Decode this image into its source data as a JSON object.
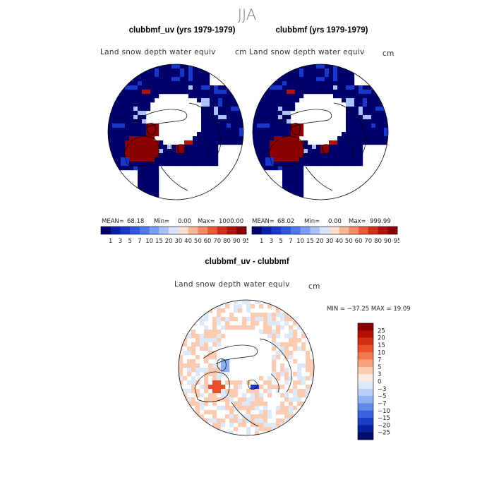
{
  "figure": {
    "season": "JJA"
  },
  "panels": [
    {
      "title": "clubbmf_uv (yrs 1979-1979)",
      "field": "Land snow depth water equiv",
      "units": "cm",
      "stats": {
        "mean_label": "MEAN=",
        "mean": "68.18",
        "min_label": "Min=",
        "min": "0.00",
        "max_label": "Max=",
        "max": "1000.00"
      }
    },
    {
      "title": "clubbmf (yrs 1979-1979)",
      "field": "Land snow depth water equiv",
      "units": "cm",
      "stats": {
        "mean_label": "MEAN=",
        "mean": "68.02",
        "min_label": "Min=",
        "min": "0.00",
        "max_label": "Max=",
        "max": "999.99"
      }
    },
    {
      "title": "clubbmf_uv - clubbmf",
      "field": "Land snow depth water equiv",
      "units": "cm",
      "stats": {
        "text": "MIN = −37.25  MAX =   19.09"
      }
    }
  ],
  "colorbar_top": {
    "labels": [
      "1",
      "3",
      "5",
      "7",
      "10",
      "15",
      "20",
      "30",
      "40",
      "50",
      "60",
      "70",
      "80",
      "90",
      "95"
    ],
    "colors": [
      "#00006a",
      "#0a1ea8",
      "#1838cc",
      "#2f55de",
      "#4f78ec",
      "#7a9cf4",
      "#a9c1f8",
      "#d8e3fb",
      "#fbe0d0",
      "#f9b597",
      "#f48a62",
      "#ea5a33",
      "#d42e16",
      "#b01208",
      "#8a0000"
    ]
  },
  "colorbar_diff": {
    "labels": [
      "25",
      "20",
      "15",
      "10",
      "7",
      "5",
      "3",
      "0",
      "−3",
      "−5",
      "−7",
      "−10",
      "−15",
      "−20",
      "−25"
    ],
    "colors": [
      "#8a0000",
      "#b50f05",
      "#d42e16",
      "#e8502c",
      "#f07a50",
      "#f6a27e",
      "#fbcbb2",
      "#fdece2",
      "#dde8f9",
      "#b8cdf6",
      "#8eaff2",
      "#6189ea",
      "#3a62dc",
      "#1b3ec4",
      "#08209c",
      "#000b6a"
    ]
  },
  "chart_data": [
    {
      "type": "heatmap",
      "projection": "north-polar-stereographic",
      "title": "clubbmf_uv (yrs 1979-1979)",
      "variable": "Land snow depth water equiv",
      "units": "cm",
      "mean": 68.18,
      "min": 0.0,
      "max": 1000.0,
      "levels": [
        1,
        3,
        5,
        7,
        10,
        15,
        20,
        30,
        40,
        50,
        60,
        70,
        80,
        90,
        95
      ]
    },
    {
      "type": "heatmap",
      "projection": "north-polar-stereographic",
      "title": "clubbmf (yrs 1979-1979)",
      "variable": "Land snow depth water equiv",
      "units": "cm",
      "mean": 68.02,
      "min": 0.0,
      "max": 999.99,
      "levels": [
        1,
        3,
        5,
        7,
        10,
        15,
        20,
        30,
        40,
        50,
        60,
        70,
        80,
        90,
        95
      ]
    },
    {
      "type": "heatmap",
      "projection": "north-polar-stereographic",
      "title": "clubbmf_uv - clubbmf",
      "variable": "Land snow depth water equiv",
      "units": "cm",
      "min": -37.25,
      "max": 19.09,
      "levels": [
        -25,
        -20,
        -15,
        -10,
        -7,
        -5,
        -3,
        0,
        3,
        5,
        7,
        10,
        15,
        20,
        25
      ]
    }
  ]
}
